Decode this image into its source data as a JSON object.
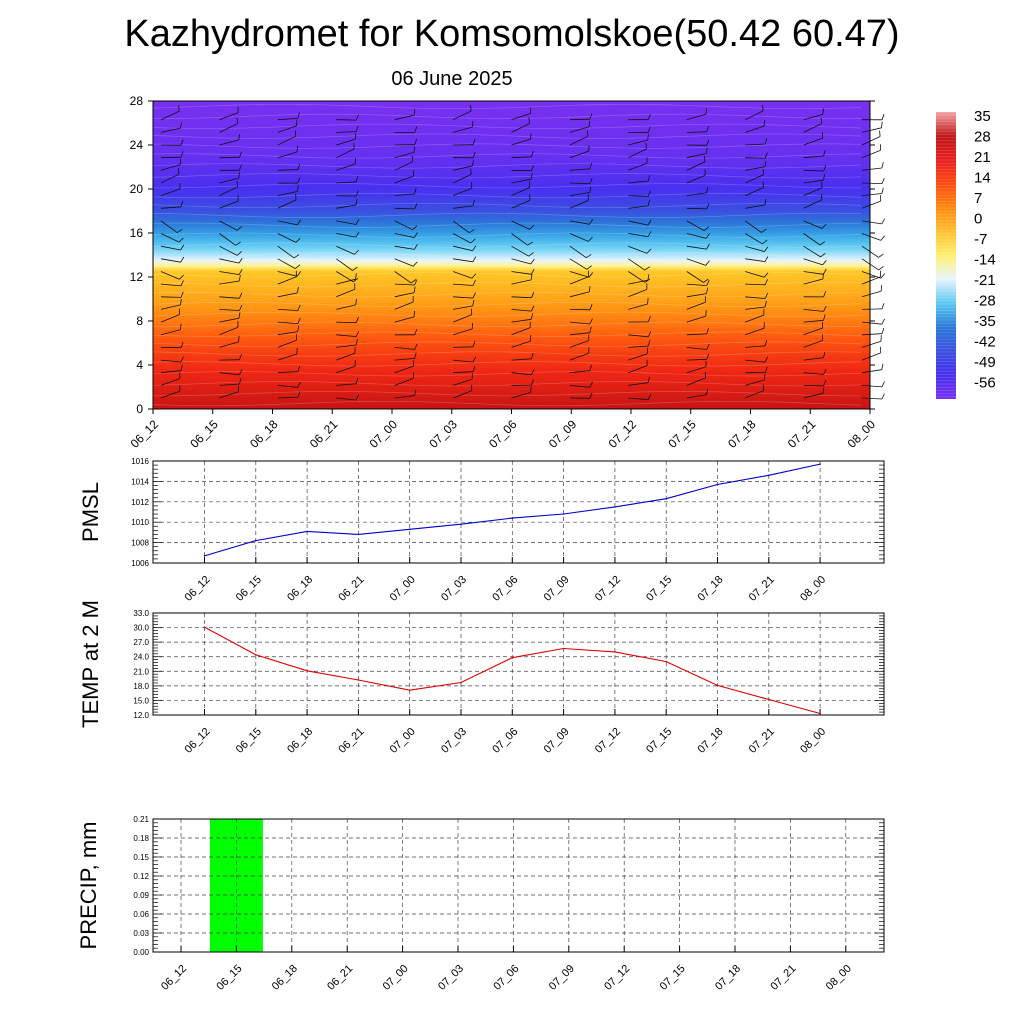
{
  "title": "Kazhydromet for Komsomolskoe(50.42 60.47)",
  "subtitle": "06 June 2025",
  "time_labels": [
    "06_12",
    "06_15",
    "06_18",
    "06_21",
    "07_00",
    "07_03",
    "07_06",
    "07_09",
    "07_12",
    "07_15",
    "07_18",
    "07_21",
    "08_00"
  ],
  "colorbar": {
    "labels": [
      "35",
      "28",
      "21",
      "14",
      "7",
      "0",
      "-7",
      "-14",
      "-21",
      "-28",
      "-35",
      "-42",
      "-49",
      "-56"
    ],
    "stops": [
      "#f4a3a3",
      "#c01818",
      "#e62020",
      "#ff4a10",
      "#ff8a10",
      "#ffc030",
      "#fff070",
      "#e8f4ff",
      "#5ac8f0",
      "#2a7ad8",
      "#3a50e0",
      "#4830f0",
      "#7a30f0"
    ]
  },
  "chart_data": [
    {
      "type": "heatmap",
      "title": "",
      "xlabel": "",
      "ylabel": "",
      "x": [
        "06_12",
        "06_15",
        "06_18",
        "06_21",
        "07_00",
        "07_03",
        "07_06",
        "07_09",
        "07_12",
        "07_15",
        "07_18",
        "07_21",
        "08_00"
      ],
      "yticks": [
        0,
        4,
        8,
        12,
        16,
        20,
        24,
        28
      ],
      "ylim": [
        0,
        28
      ],
      "zlim": [
        -56,
        35
      ],
      "profile_y": [
        0,
        2,
        5,
        8,
        10,
        12.5,
        13.5,
        16,
        18,
        20,
        23,
        28
      ],
      "profile_temperature": [
        28,
        24,
        18,
        10,
        5,
        0,
        -14,
        -30,
        -42,
        -50,
        -55,
        -58
      ],
      "description_marks": "wind barbs overlaid"
    },
    {
      "type": "line",
      "ylabel": "PMSL",
      "x": [
        "06_12",
        "06_15",
        "06_18",
        "06_21",
        "07_00",
        "07_03",
        "07_06",
        "07_09",
        "07_12",
        "07_15",
        "07_18",
        "07_21",
        "08_00"
      ],
      "yticks": [
        "1006",
        "1008",
        "1010",
        "1012",
        "1014",
        "1016"
      ],
      "ylim": [
        1006,
        1016
      ],
      "series": [
        {
          "values": [
            1006.7,
            1008.2,
            1009.1,
            1008.8,
            1009.3,
            1009.8,
            1010.4,
            1010.8,
            1011.5,
            1012.3,
            1013.7,
            1014.6,
            1015.7
          ],
          "color": "#0000cc"
        }
      ]
    },
    {
      "type": "line",
      "ylabel": "TEMP at 2 M",
      "x": [
        "06_12",
        "06_15",
        "06_18",
        "06_21",
        "07_00",
        "07_03",
        "07_06",
        "07_09",
        "07_12",
        "07_15",
        "07_18",
        "07_21",
        "08_00"
      ],
      "yticks": [
        "12.0",
        "15.0",
        "18.0",
        "21.0",
        "24.0",
        "27.0",
        "30.0",
        "33.0"
      ],
      "ylim": [
        12,
        33
      ],
      "series": [
        {
          "values": [
            30.1,
            24.4,
            21.1,
            19.2,
            17.1,
            18.7,
            23.8,
            25.7,
            25.0,
            23.0,
            18.1,
            15.2,
            12.3
          ],
          "color": "#dd0000"
        }
      ]
    },
    {
      "type": "bar",
      "ylabel": "PRECIP, mm",
      "categories": [
        "06_12",
        "06_15",
        "06_18",
        "06_21",
        "07_00",
        "07_03",
        "07_06",
        "07_09",
        "07_12",
        "07_15",
        "07_18",
        "07_21",
        "08_00"
      ],
      "yticks": [
        "0.00",
        "0.03",
        "0.06",
        "0.09",
        "0.12",
        "0.15",
        "0.18",
        "0.21"
      ],
      "ylim": [
        0,
        0.21
      ],
      "values": [
        0,
        0.21,
        0,
        0,
        0,
        0,
        0,
        0,
        0,
        0,
        0,
        0,
        0
      ],
      "bar_color": "#00ff00"
    }
  ]
}
